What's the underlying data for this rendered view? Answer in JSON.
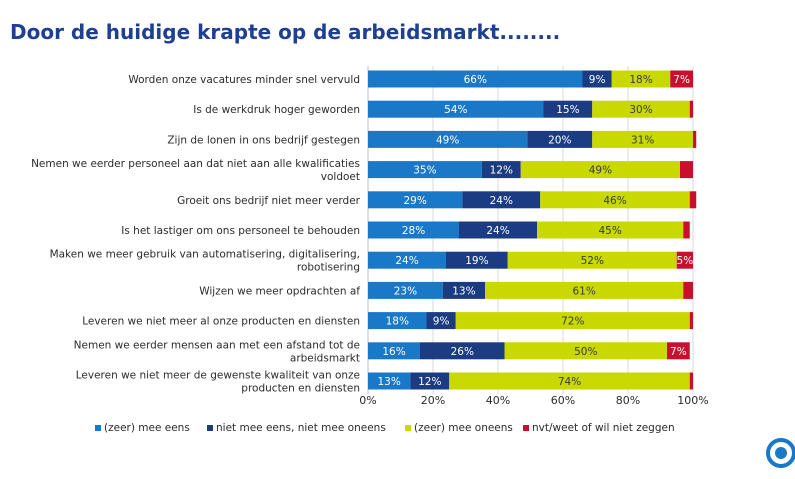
{
  "page": {
    "title": "Door de huidige krapte op de arbeidsmarkt........"
  },
  "colors": {
    "series": [
      "#1a78c8",
      "#1b3c82",
      "#c9d900",
      "#c8102e"
    ],
    "text": "#2b2b2b",
    "title": "#1f3f92"
  },
  "chart_data": {
    "type": "bar",
    "orientation": "horizontal",
    "stacked": true,
    "xlim": [
      0,
      100
    ],
    "ticks": [
      "0%",
      "20%",
      "40%",
      "60%",
      "80%",
      "100%"
    ],
    "legend_position": "bottom",
    "categories": [
      "Worden onze vacatures minder snel vervuld",
      "Is de werkdruk hoger geworden",
      "Zijn de lonen in ons bedrijf gestegen",
      "Nemen we eerder personeel aan dat niet aan alle kwalificaties voldoet",
      "Groeit ons bedrijf niet meer verder",
      "Is het lastiger om ons personeel te behouden",
      "Maken we meer gebruik van automatisering, digitalisering, robotisering",
      "Wijzen we meer opdrachten af",
      "Leveren we niet meer al onze producten en diensten",
      "Nemen we eerder mensen aan met een afstand tot de arbeidsmarkt",
      "Leveren we niet meer de gewenste kwaliteit van onze producten en diensten"
    ],
    "category_lines": [
      [
        "Worden onze vacatures minder snel vervuld"
      ],
      [
        "Is de werkdruk hoger geworden"
      ],
      [
        "Zijn de lonen in ons bedrijf gestegen"
      ],
      [
        "Nemen we eerder personeel aan dat niet aan alle kwalificaties",
        "voldoet"
      ],
      [
        "Groeit ons bedrijf niet meer verder"
      ],
      [
        "Is het lastiger om ons personeel te behouden"
      ],
      [
        "Maken we meer gebruik van automatisering, digitalisering,",
        "robotisering"
      ],
      [
        "Wijzen we meer opdrachten af"
      ],
      [
        "Leveren we niet meer al onze producten en diensten"
      ],
      [
        "Nemen we eerder mensen aan met een afstand tot de",
        "arbeidsmarkt"
      ],
      [
        "Leveren we niet meer de gewenste kwaliteit van onze",
        "producten en diensten"
      ]
    ],
    "series": [
      {
        "name": "(zeer) mee eens",
        "values": [
          66,
          54,
          49,
          35,
          29,
          28,
          24,
          23,
          18,
          16,
          13
        ]
      },
      {
        "name": "niet mee eens, niet mee oneens",
        "values": [
          9,
          15,
          20,
          12,
          24,
          24,
          19,
          13,
          9,
          26,
          12
        ]
      },
      {
        "name": "(zeer) mee oneens",
        "values": [
          18,
          30,
          31,
          49,
          46,
          45,
          52,
          61,
          72,
          50,
          74
        ]
      },
      {
        "name": "nvt/weet of wil niet zeggen",
        "values": [
          7,
          1,
          1,
          4,
          2,
          2,
          5,
          3,
          1,
          7,
          1
        ]
      }
    ],
    "value_labels": [
      [
        "66%",
        "9%",
        "18%",
        "7%"
      ],
      [
        "54%",
        "15%",
        "30%",
        ""
      ],
      [
        "49%",
        "20%",
        "31%",
        ""
      ],
      [
        "35%",
        "12%",
        "49%",
        ""
      ],
      [
        "29%",
        "24%",
        "46%",
        ""
      ],
      [
        "28%",
        "24%",
        "45%",
        ""
      ],
      [
        "24%",
        "19%",
        "52%",
        "5%"
      ],
      [
        "23%",
        "13%",
        "61%",
        ""
      ],
      [
        "18%",
        "9%",
        "72%",
        ""
      ],
      [
        "16%",
        "26%",
        "50%",
        "7%"
      ],
      [
        "13%",
        "12%",
        "74%",
        ""
      ]
    ]
  }
}
